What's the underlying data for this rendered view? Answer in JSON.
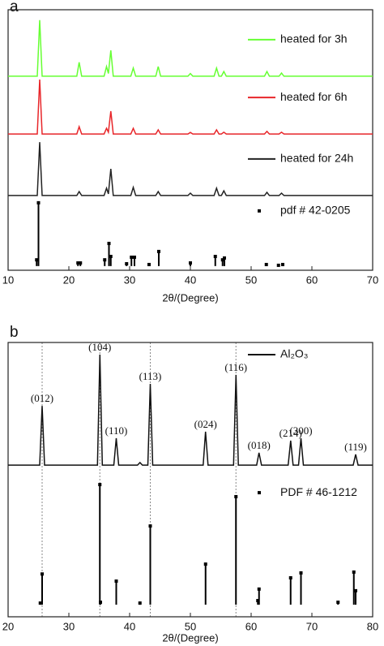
{
  "chart_data": [
    {
      "type": "line",
      "label": "a",
      "xlabel": "2θ/(Degree)",
      "xlim": [
        10,
        70
      ],
      "xticks": [
        10,
        20,
        30,
        40,
        50,
        60,
        70
      ],
      "ylim": [
        0,
        100
      ],
      "legend": "beside",
      "series": [
        {
          "name": "heated for 3h",
          "color": "#66ff33",
          "mark": "line",
          "x": [
            10,
            14.8,
            15.2,
            15.6,
            21.3,
            21.7,
            22.1,
            25.8,
            26.2,
            26.5,
            26.9,
            27.3,
            30.2,
            30.6,
            31.0,
            34.3,
            34.7,
            35.1,
            39.6,
            40.0,
            40.4,
            43.9,
            44.3,
            44.7,
            45.1,
            45.5,
            45.9,
            52.2,
            52.6,
            53.0,
            54.6,
            55.0,
            55.4,
            70
          ],
          "values": [
            74.5,
            74.5,
            96.0,
            74.5,
            74.5,
            79.8,
            74.5,
            74.5,
            78.2,
            75.5,
            84.4,
            74.5,
            74.5,
            77.6,
            74.5,
            74.5,
            78.2,
            74.5,
            74.5,
            75.5,
            74.5,
            74.5,
            77.6,
            74.5,
            74.5,
            76.3,
            74.5,
            74.5,
            76.3,
            74.5,
            74.5,
            75.7,
            74.5,
            74.5
          ]
        },
        {
          "name": "heated for 6h",
          "color": "#e8262a",
          "mark": "line",
          "x": [
            10,
            14.8,
            15.2,
            15.6,
            21.3,
            21.7,
            22.1,
            25.8,
            26.2,
            26.5,
            26.9,
            27.3,
            30.2,
            30.6,
            31.0,
            34.3,
            34.7,
            35.1,
            39.6,
            40.0,
            40.4,
            43.9,
            44.3,
            44.7,
            45.1,
            45.5,
            45.9,
            52.2,
            52.6,
            53.0,
            54.6,
            55.0,
            55.4,
            70
          ],
          "values": [
            52.3,
            52.3,
            73.2,
            52.3,
            52.3,
            55.1,
            52.3,
            52.3,
            54.5,
            53.0,
            61.1,
            52.3,
            52.3,
            54.5,
            52.3,
            52.3,
            53.9,
            52.3,
            52.3,
            52.9,
            52.3,
            52.3,
            53.9,
            52.3,
            52.3,
            53.0,
            52.3,
            52.3,
            53.3,
            52.3,
            52.3,
            53.0,
            52.3,
            52.3
          ]
        },
        {
          "name": "heated for 24h",
          "color": "#222222",
          "mark": "line",
          "x": [
            10,
            14.8,
            15.2,
            15.6,
            21.3,
            21.7,
            22.1,
            25.8,
            26.2,
            26.5,
            26.9,
            27.3,
            30.2,
            30.6,
            31.0,
            34.3,
            34.7,
            35.1,
            39.6,
            40.0,
            40.4,
            43.9,
            44.3,
            44.7,
            45.1,
            45.5,
            45.9,
            52.2,
            52.6,
            53.0,
            54.6,
            55.0,
            55.4,
            70
          ],
          "values": [
            28.7,
            28.7,
            49.2,
            28.7,
            28.7,
            30.2,
            28.7,
            28.7,
            31.5,
            29.3,
            38.9,
            28.7,
            28.7,
            31.8,
            28.7,
            28.7,
            30.2,
            28.7,
            28.7,
            29.6,
            28.7,
            28.7,
            31.5,
            28.7,
            28.7,
            30.5,
            28.7,
            28.7,
            29.9,
            28.7,
            28.7,
            29.6,
            28.7,
            28.7
          ]
        },
        {
          "name": "pdf # 42-0205",
          "color": "#000000",
          "mark": "stick",
          "base": 1.6,
          "x": [
            14.7,
            15.0,
            21.5,
            21.9,
            25.9,
            26.6,
            26.9,
            29.5,
            30.3,
            30.8,
            33.2,
            34.8,
            40.0,
            44.1,
            45.3,
            45.6,
            52.5,
            54.5,
            55.2
          ],
          "values": [
            4.0,
            25.9,
            2.8,
            2.8,
            4.0,
            10.3,
            5.3,
            2.5,
            5.0,
            5.0,
            2.2,
            7.2,
            2.8,
            5.3,
            4.0,
            4.7,
            2.2,
            1.9,
            2.2
          ]
        }
      ]
    },
    {
      "type": "line",
      "label": "b",
      "xlabel": "2θ/(Degree)",
      "xlim": [
        20,
        80
      ],
      "xticks": [
        20,
        30,
        40,
        50,
        60,
        70,
        80
      ],
      "ylim": [
        0,
        100
      ],
      "legend": "upper right",
      "guides": [
        25.6,
        35.1,
        43.4,
        57.5
      ],
      "series": [
        {
          "name": "Al₂O₃",
          "color": "#111111",
          "mark": "line",
          "x": [
            20,
            25.2,
            25.6,
            26.0,
            34.7,
            35.1,
            35.5,
            37.4,
            37.8,
            38.2,
            41.3,
            41.7,
            42.1,
            43.0,
            43.4,
            43.8,
            52.1,
            52.5,
            52.9,
            57.1,
            57.5,
            57.9,
            60.9,
            61.3,
            61.7,
            66.1,
            66.5,
            66.9,
            67.8,
            68.2,
            68.6,
            76.8,
            77.2,
            77.6,
            80
          ],
          "values": [
            55.3,
            55.3,
            76.9,
            55.3,
            55.3,
            95.6,
            55.3,
            55.3,
            65.1,
            55.3,
            55.3,
            56.2,
            55.3,
            55.3,
            84.9,
            55.3,
            55.3,
            67.5,
            55.3,
            55.3,
            88.2,
            55.3,
            55.3,
            59.8,
            55.3,
            55.3,
            64.2,
            55.3,
            55.3,
            65.1,
            55.3,
            55.3,
            59.2,
            55.3,
            55.3
          ]
        },
        {
          "name": "PDF # 46-1212",
          "color": "#000000",
          "mark": "stick",
          "base": 4.4,
          "x": [
            25.3,
            25.6,
            35.1,
            35.2,
            37.8,
            41.7,
            43.4,
            52.5,
            57.5,
            61.1,
            61.3,
            66.5,
            68.2,
            74.3,
            76.9,
            77.2
          ],
          "values": [
            5.0,
            15.6,
            48.2,
            5.3,
            13.0,
            5.0,
            33.1,
            19.2,
            43.8,
            5.9,
            10.1,
            14.2,
            16.0,
            5.3,
            16.3,
            9.5
          ]
        }
      ],
      "annotations": [
        {
          "text": "(012)",
          "x": 25.6
        },
        {
          "text": "(104)",
          "x": 35.1
        },
        {
          "text": "(110)",
          "x": 37.8
        },
        {
          "text": "(113)",
          "x": 43.4
        },
        {
          "text": "(024)",
          "x": 52.5
        },
        {
          "text": "(116)",
          "x": 57.5
        },
        {
          "text": "(018)",
          "x": 61.3
        },
        {
          "text": "(214)",
          "x": 66.5
        },
        {
          "text": "(300)",
          "x": 68.2
        },
        {
          "text": "(119)",
          "x": 77.2
        }
      ]
    }
  ]
}
